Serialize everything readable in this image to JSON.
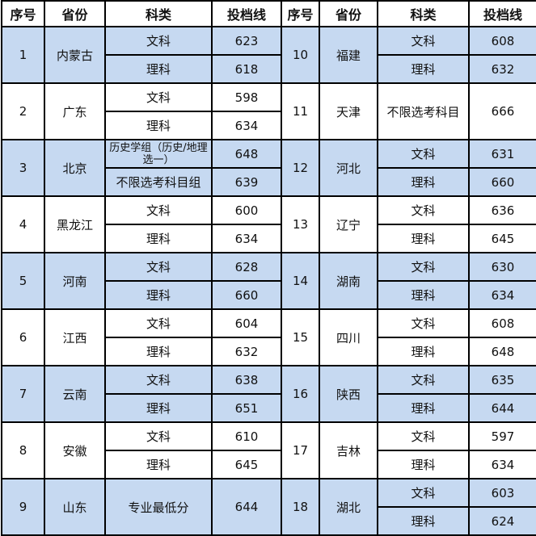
{
  "header": [
    "序号",
    "省份",
    "科类",
    "投档线",
    "序号",
    "省份",
    "科类",
    "投档线"
  ],
  "colors": {
    "shaded_row": "#c6d9f1",
    "border": "#000000"
  },
  "groups": [
    {
      "left": {
        "no": "1",
        "province": "内蒙古",
        "rows": [
          {
            "type": "文科",
            "score": "623"
          },
          {
            "type": "理科",
            "score": "618"
          }
        ]
      },
      "right": {
        "no": "10",
        "province": "福建",
        "rows": [
          {
            "type": "文科",
            "score": "608"
          },
          {
            "type": "理科",
            "score": "632"
          }
        ]
      }
    },
    {
      "left": {
        "no": "2",
        "province": "广东",
        "rows": [
          {
            "type": "文科",
            "score": "598"
          },
          {
            "type": "理科",
            "score": "634"
          }
        ]
      },
      "right": {
        "no": "11",
        "province": "天津",
        "rows": [
          {
            "type": "不限选考科目",
            "score": "666"
          }
        ]
      }
    },
    {
      "left": {
        "no": "3",
        "province": "北京",
        "rows": [
          {
            "type": "历史学组（历史/地理选一）",
            "score": "648"
          },
          {
            "type": "不限选考科目组",
            "score": "639"
          }
        ]
      },
      "right": {
        "no": "12",
        "province": "河北",
        "rows": [
          {
            "type": "文科",
            "score": "631"
          },
          {
            "type": "理科",
            "score": "660"
          }
        ]
      }
    },
    {
      "left": {
        "no": "4",
        "province": "黑龙江",
        "rows": [
          {
            "type": "文科",
            "score": "600"
          },
          {
            "type": "理科",
            "score": "634"
          }
        ]
      },
      "right": {
        "no": "13",
        "province": "辽宁",
        "rows": [
          {
            "type": "文科",
            "score": "636"
          },
          {
            "type": "理科",
            "score": "645"
          }
        ]
      }
    },
    {
      "left": {
        "no": "5",
        "province": "河南",
        "rows": [
          {
            "type": "文科",
            "score": "628"
          },
          {
            "type": "理科",
            "score": "660"
          }
        ]
      },
      "right": {
        "no": "14",
        "province": "湖南",
        "rows": [
          {
            "type": "文科",
            "score": "630"
          },
          {
            "type": "理科",
            "score": "634"
          }
        ]
      }
    },
    {
      "left": {
        "no": "6",
        "province": "江西",
        "rows": [
          {
            "type": "文科",
            "score": "604"
          },
          {
            "type": "理科",
            "score": "632"
          }
        ]
      },
      "right": {
        "no": "15",
        "province": "四川",
        "rows": [
          {
            "type": "文科",
            "score": "608"
          },
          {
            "type": "理科",
            "score": "648"
          }
        ]
      }
    },
    {
      "left": {
        "no": "7",
        "province": "云南",
        "rows": [
          {
            "type": "文科",
            "score": "638"
          },
          {
            "type": "理科",
            "score": "651"
          }
        ]
      },
      "right": {
        "no": "16",
        "province": "陕西",
        "rows": [
          {
            "type": "文科",
            "score": "635"
          },
          {
            "type": "理科",
            "score": "644"
          }
        ]
      }
    },
    {
      "left": {
        "no": "8",
        "province": "安徽",
        "rows": [
          {
            "type": "文科",
            "score": "610"
          },
          {
            "type": "理科",
            "score": "645"
          }
        ]
      },
      "right": {
        "no": "17",
        "province": "吉林",
        "rows": [
          {
            "type": "文科",
            "score": "597"
          },
          {
            "type": "理科",
            "score": "634"
          }
        ]
      }
    },
    {
      "left": {
        "no": "9",
        "province": "山东",
        "rows": [
          {
            "type": "专业最低分",
            "score": "644"
          }
        ]
      },
      "right": {
        "no": "18",
        "province": "湖北",
        "rows": [
          {
            "type": "文科",
            "score": "603"
          },
          {
            "type": "理科",
            "score": "624"
          }
        ]
      }
    }
  ]
}
